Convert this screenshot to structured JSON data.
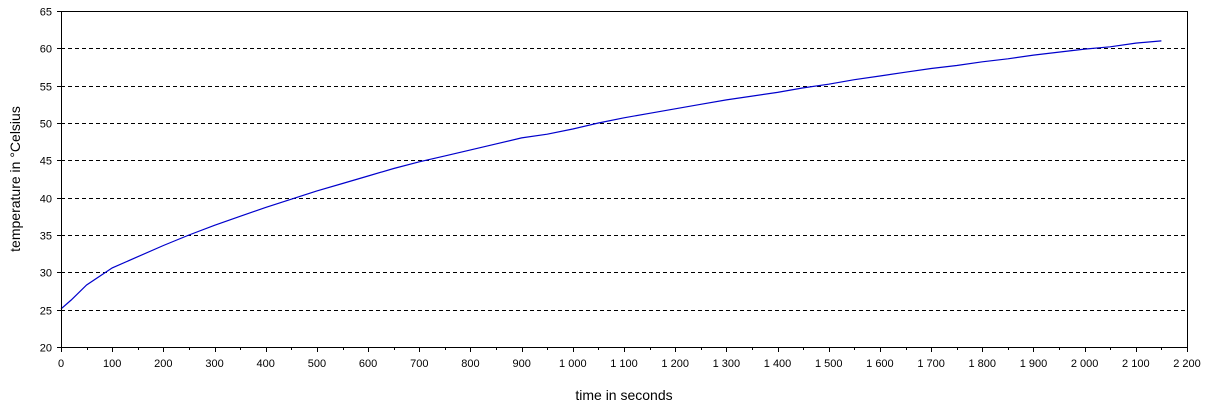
{
  "chart_data": {
    "type": "line",
    "title": "",
    "xlabel": "time in seconds",
    "ylabel": "temperature in °Celsius",
    "xlim": [
      0,
      2200
    ],
    "ylim": [
      20,
      65
    ],
    "x_ticks": [
      0,
      100,
      200,
      300,
      400,
      500,
      600,
      700,
      800,
      900,
      1000,
      1100,
      1200,
      1300,
      1400,
      1500,
      1600,
      1700,
      1800,
      1900,
      2000,
      2100,
      2200
    ],
    "x_tick_labels": [
      "0",
      "100",
      "200",
      "300",
      "400",
      "500",
      "600",
      "700",
      "800",
      "900",
      "1 000",
      "1 100",
      "1 200",
      "1 300",
      "1 400",
      "1 500",
      "1 600",
      "1 700",
      "1 800",
      "1 900",
      "2 000",
      "2 100",
      "2 200"
    ],
    "y_ticks": [
      20,
      25,
      30,
      35,
      40,
      45,
      50,
      55,
      60,
      65
    ],
    "y_tick_labels": [
      "20",
      "25",
      "30",
      "35",
      "40",
      "45",
      "50",
      "55",
      "60",
      "65"
    ],
    "grid": "horizontal dashed",
    "legend": "none",
    "series": [
      {
        "color": "#0000cc",
        "x": [
          0,
          20,
          50,
          100,
          150,
          200,
          250,
          300,
          350,
          400,
          450,
          500,
          550,
          600,
          650,
          700,
          750,
          800,
          850,
          900,
          950,
          1000,
          1050,
          1100,
          1150,
          1200,
          1250,
          1300,
          1350,
          1400,
          1450,
          1500,
          1550,
          1600,
          1650,
          1700,
          1750,
          1800,
          1850,
          1900,
          1950,
          2000,
          2050,
          2100,
          2150
        ],
        "y": [
          25.1,
          26.3,
          28.3,
          30.6,
          32.1,
          33.6,
          35.0,
          36.3,
          37.5,
          38.7,
          39.8,
          40.9,
          41.9,
          42.9,
          43.9,
          44.8,
          45.6,
          46.4,
          47.2,
          48.0,
          48.5,
          49.2,
          50.0,
          50.7,
          51.3,
          51.9,
          52.5,
          53.1,
          53.6,
          54.1,
          54.7,
          55.2,
          55.8,
          56.3,
          56.8,
          57.3,
          57.7,
          58.2,
          58.6,
          59.1,
          59.5,
          59.9,
          60.2,
          60.7,
          61.0
        ]
      }
    ]
  }
}
